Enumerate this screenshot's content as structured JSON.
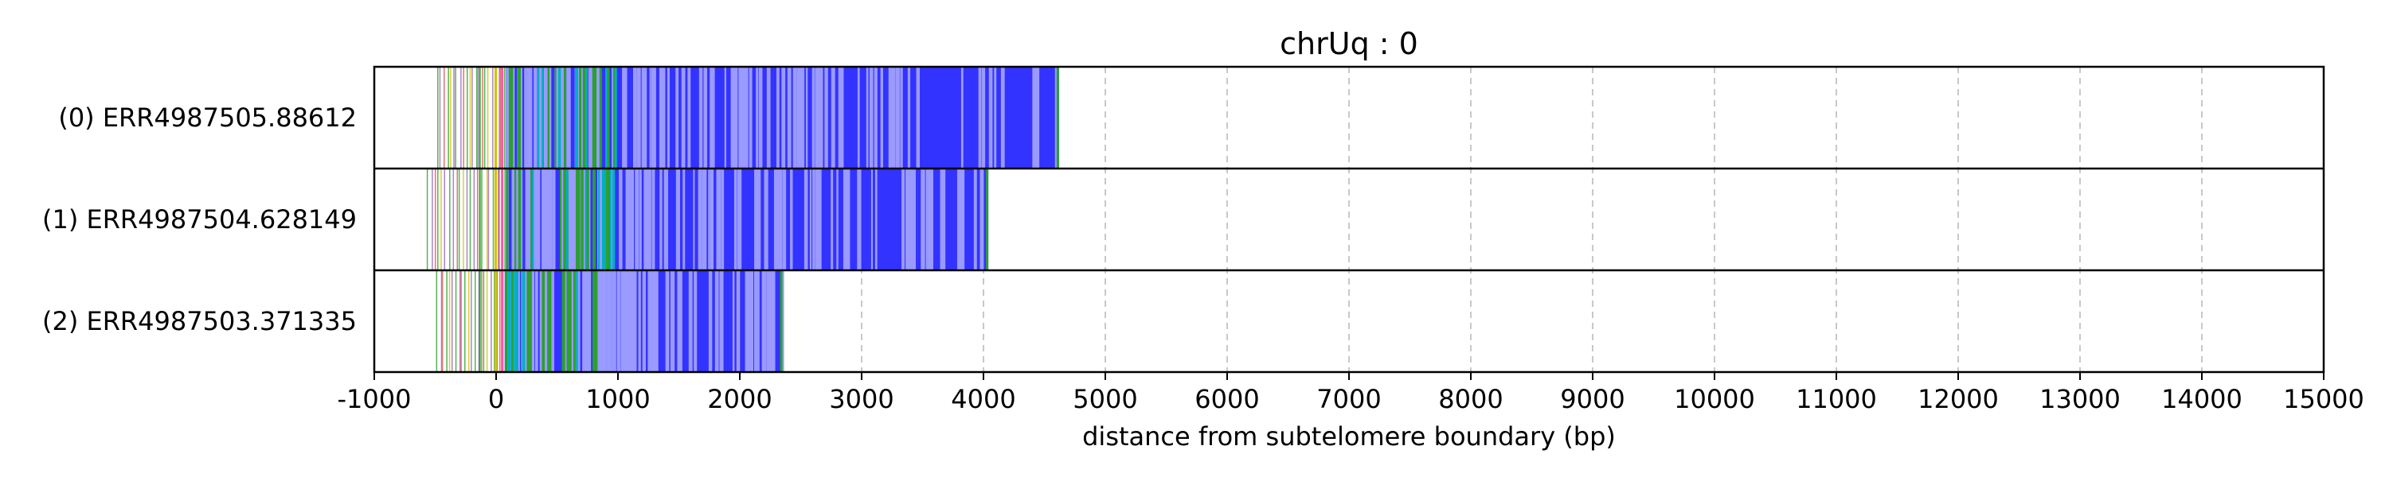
{
  "chart_data": {
    "type": "read-track",
    "title": "chrUq : 0",
    "xlabel": "distance from subtelomere boundary (bp)",
    "ylabel": "",
    "xlim": [
      -1000,
      15000
    ],
    "xticks": [
      -1000,
      0,
      1000,
      2000,
      3000,
      4000,
      5000,
      6000,
      7000,
      8000,
      9000,
      10000,
      11000,
      12000,
      13000,
      14000,
      15000
    ],
    "grid": "vertical dashed",
    "colors": {
      "tvr_green": "#2ca02c",
      "tvr_purple": "#9467bd",
      "tvr_red": "#e05050",
      "tvr_yellow": "#d4c200",
      "tvr_cyan": "#00b0c0",
      "telomere_blue": "#3333ff",
      "gap_lavender": "#9a9aff",
      "grid": "#c8c8c8"
    },
    "reads": [
      {
        "label": "(0) ERR4987505.88612",
        "start": -500,
        "dense_start": 80,
        "end": 4620
      },
      {
        "label": "(1) ERR4987504.628149",
        "start": -580,
        "dense_start": 80,
        "end": 4040
      },
      {
        "label": "(2) ERR4987503.371335",
        "start": -500,
        "dense_start": 70,
        "end": 2350
      }
    ]
  }
}
